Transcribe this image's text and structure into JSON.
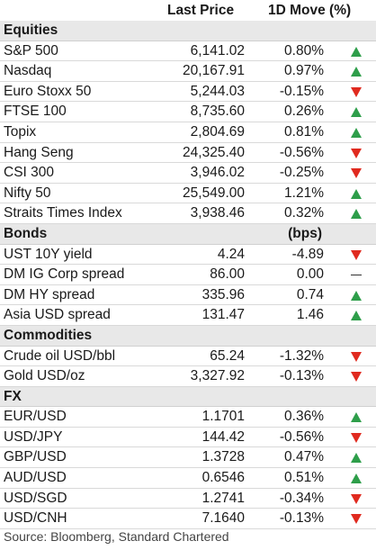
{
  "header": {
    "price": "Last Price",
    "move": "1D Move (%)"
  },
  "colors": {
    "up": "#2e9e4a",
    "down": "#e02a1f",
    "section_bg": "#e8e8e8"
  },
  "sections": [
    {
      "title": "Equities",
      "unit": "",
      "rows": [
        {
          "name": "S&P 500",
          "price": "6,141.02",
          "move": "0.80%",
          "dir": "up"
        },
        {
          "name": "Nasdaq",
          "price": "20,167.91",
          "move": "0.97%",
          "dir": "up"
        },
        {
          "name": "Euro Stoxx 50",
          "price": "5,244.03",
          "move": "-0.15%",
          "dir": "down"
        },
        {
          "name": "FTSE 100",
          "price": "8,735.60",
          "move": "0.26%",
          "dir": "up"
        },
        {
          "name": "Topix",
          "price": "2,804.69",
          "move": "0.81%",
          "dir": "up"
        },
        {
          "name": "Hang Seng",
          "price": "24,325.40",
          "move": "-0.56%",
          "dir": "down"
        },
        {
          "name": "CSI 300",
          "price": "3,946.02",
          "move": "-0.25%",
          "dir": "down"
        },
        {
          "name": "Nifty 50",
          "price": "25,549.00",
          "move": "1.21%",
          "dir": "up"
        },
        {
          "name": "Straits Times Index",
          "price": "3,938.46",
          "move": "0.32%",
          "dir": "up"
        }
      ]
    },
    {
      "title": "Bonds",
      "unit": "(bps)",
      "rows": [
        {
          "name": "UST 10Y yield",
          "price": "4.24",
          "move": "-4.89",
          "dir": "down"
        },
        {
          "name": "DM IG Corp spread",
          "price": "86.00",
          "move": "0.00",
          "dir": "flat"
        },
        {
          "name": "DM HY spread",
          "price": "335.96",
          "move": "0.74",
          "dir": "up"
        },
        {
          "name": "Asia USD spread",
          "price": "131.47",
          "move": "1.46",
          "dir": "up"
        }
      ]
    },
    {
      "title": "Commodities",
      "unit": "",
      "rows": [
        {
          "name": "Crude oil USD/bbl",
          "price": "65.24",
          "move": "-1.32%",
          "dir": "down"
        },
        {
          "name": "Gold USD/oz",
          "price": "3,327.92",
          "move": "-0.13%",
          "dir": "down"
        }
      ]
    },
    {
      "title": "FX",
      "unit": "",
      "rows": [
        {
          "name": "EUR/USD",
          "price": "1.1701",
          "move": "0.36%",
          "dir": "up"
        },
        {
          "name": "USD/JPY",
          "price": "144.42",
          "move": "-0.56%",
          "dir": "down"
        },
        {
          "name": "GBP/USD",
          "price": "1.3728",
          "move": "0.47%",
          "dir": "up"
        },
        {
          "name": "AUD/USD",
          "price": "0.6546",
          "move": "0.51%",
          "dir": "up"
        },
        {
          "name": "USD/SGD",
          "price": "1.2741",
          "move": "-0.34%",
          "dir": "down"
        },
        {
          "name": "USD/CNH",
          "price": "7.1640",
          "move": "-0.13%",
          "dir": "down"
        }
      ]
    }
  ],
  "source": "Source: Bloomberg, Standard Chartered"
}
